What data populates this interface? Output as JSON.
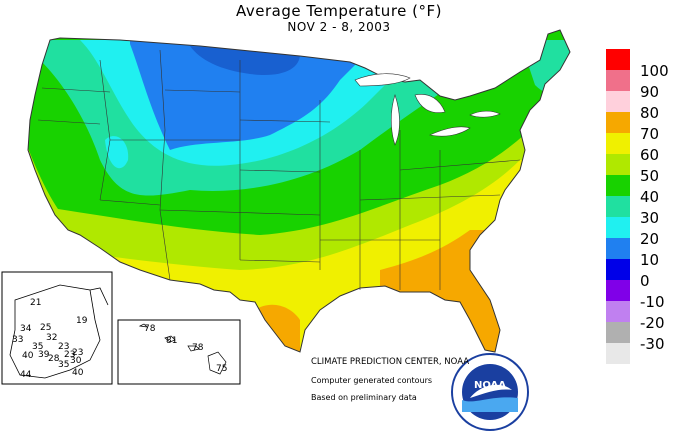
{
  "title": "Average Temperature (°F)",
  "subtitle": "NOV 2 - 8, 2003",
  "legend": [
    {
      "label": "100",
      "color": "#ff0000"
    },
    {
      "label": "90",
      "color": "#f0708a"
    },
    {
      "label": "80",
      "color": "#ffd0dc"
    },
    {
      "label": "70",
      "color": "#f6a800"
    },
    {
      "label": "60",
      "color": "#f0f000"
    },
    {
      "label": "50",
      "color": "#b0e800"
    },
    {
      "label": "40",
      "color": "#18d200"
    },
    {
      "label": "30",
      "color": "#20e0a0"
    },
    {
      "label": "20",
      "color": "#20f0f0"
    },
    {
      "label": "10",
      "color": "#2080f0"
    },
    {
      "label": "0",
      "color": "#0000e8"
    },
    {
      "label": "-10",
      "color": "#8000e8"
    },
    {
      "label": "-20",
      "color": "#c080f0"
    },
    {
      "label": "-30",
      "color": "#b0b0b0"
    },
    {
      "label": "",
      "color": "#e8e8e8"
    }
  ],
  "credits": {
    "line1": "CLIMATE PREDICTION CENTER, NOAA",
    "line2": "Computer generated contours",
    "line3": "Based on preliminary data"
  },
  "logo": {
    "text": "NOAA"
  },
  "alaska_labels": [
    "21",
    "19",
    "34",
    "25",
    "33",
    "32",
    "35",
    "23",
    "40",
    "39",
    "28",
    "30",
    "35",
    "44",
    "23",
    "23",
    "40"
  ],
  "hawaii_labels": [
    "78",
    "81",
    "78",
    "75"
  ]
}
